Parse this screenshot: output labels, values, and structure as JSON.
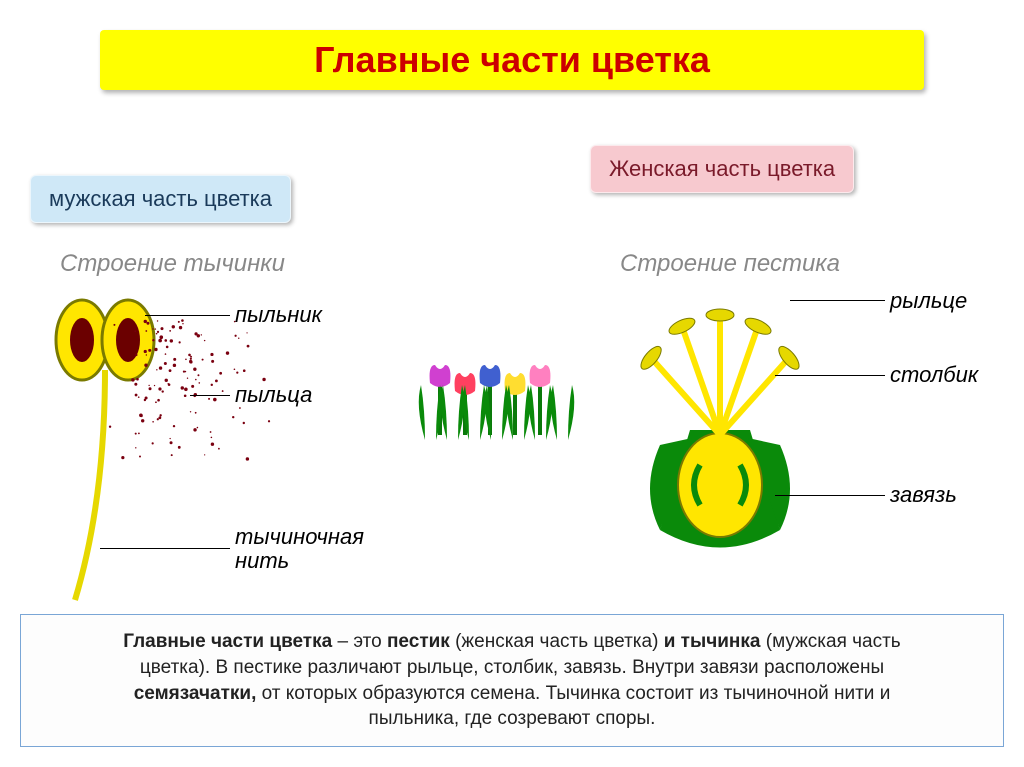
{
  "title": {
    "text": "Главные части цветка",
    "bg": "#ffff00",
    "color": "#cc0000",
    "fontsize": 36
  },
  "male_box": {
    "text": "мужская часть цветка",
    "bg": "#cfe8f7",
    "color": "#1a3a5a"
  },
  "female_box": {
    "text": "Женская часть цветка",
    "bg": "#f7c9cf",
    "color": "#7a1a2a"
  },
  "sub_left": "Строение тычинки",
  "sub_right": "Строение пестика",
  "stamen": {
    "labels": {
      "anther": "пыльник",
      "pollen": "пыльца",
      "filament": "тычиночная\nнить"
    },
    "colors": {
      "anther_fill": "#ffe600",
      "anther_stroke": "#7a7a00",
      "anther_center": "#6b0000",
      "filament": "#e6d800",
      "pollen_dot": "#7a0010"
    }
  },
  "pistil": {
    "labels": {
      "stigma": "рыльце",
      "style": "столбик",
      "ovary": "завязь"
    },
    "colors": {
      "style": "#ffe600",
      "style_stroke": "#7a7a00",
      "stigma": "#e6d800",
      "ovary_outer": "#0a8a0a",
      "ovary_inner": "#ffe600",
      "ovule": "#0a8a0a"
    }
  },
  "center_flowers": {
    "leaf": "#0a8a0a",
    "stem": "#0a7a0a",
    "petals": [
      "#d040d0",
      "#ff4060",
      "#4060d0",
      "#ffdd30",
      "#ff80c0"
    ]
  },
  "footer": {
    "t1a": "Главные части цветка",
    "t1b": " – это ",
    "t1c": "пестик",
    "t1d": " (женская часть цветка) ",
    "t1e": "и тычинка",
    "t1f": " (мужская часть",
    "t2": "цветка).   В пестике различают рыльце, столбик, завязь. Внутри завязи расположены",
    "t3a": "семязачатки,",
    "t3b": " от которых образуются семена. Тычинка состоит из тычиночной нити и",
    "t4": "пыльника, где созревают споры."
  }
}
